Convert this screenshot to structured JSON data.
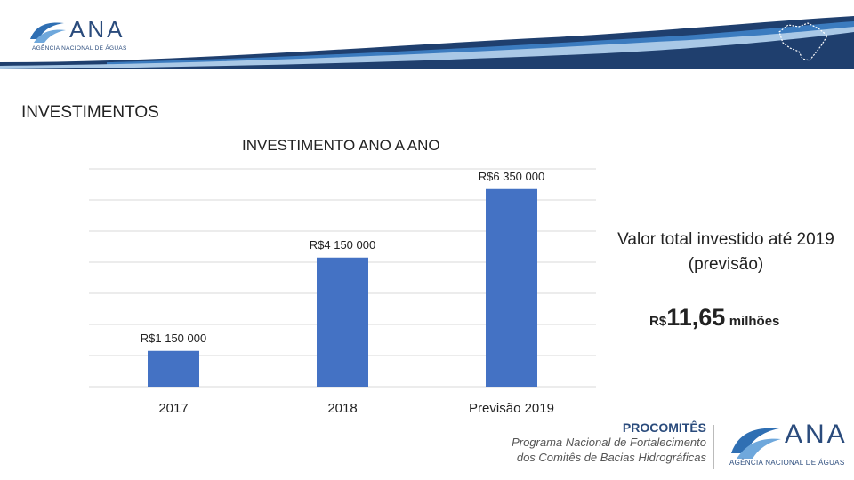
{
  "header": {
    "logo_word": "ANA",
    "logo_subtitle": "AGÊNCIA NACIONAL DE ÁGUAS"
  },
  "section_title": "INVESTIMENTOS",
  "chart_data": {
    "type": "bar",
    "title": "INVESTIMENTO ANO A ANO",
    "categories": [
      "2017",
      "2018",
      "Previsão 2019"
    ],
    "values": [
      1150000,
      4150000,
      6350000
    ],
    "data_labels": [
      "R$1 150 000",
      "R$4 150 000",
      "R$6 350 000"
    ],
    "ylim": [
      0,
      7000000
    ],
    "grid": true,
    "color": "#4472c4"
  },
  "summary": {
    "text": "Valor total investido até 2019 (previsão)",
    "currency": "R$",
    "amount": "11,65",
    "unit": "milhões"
  },
  "footer": {
    "program_name": "PROCOMITÊS",
    "program_line1": "Programa Nacional de Fortalecimento",
    "program_line2": "dos Comitês de Bacias Hidrográficas",
    "logo_word": "ANA",
    "logo_subtitle": "AGÊNCIA NACIONAL DE ÁGUAS"
  }
}
